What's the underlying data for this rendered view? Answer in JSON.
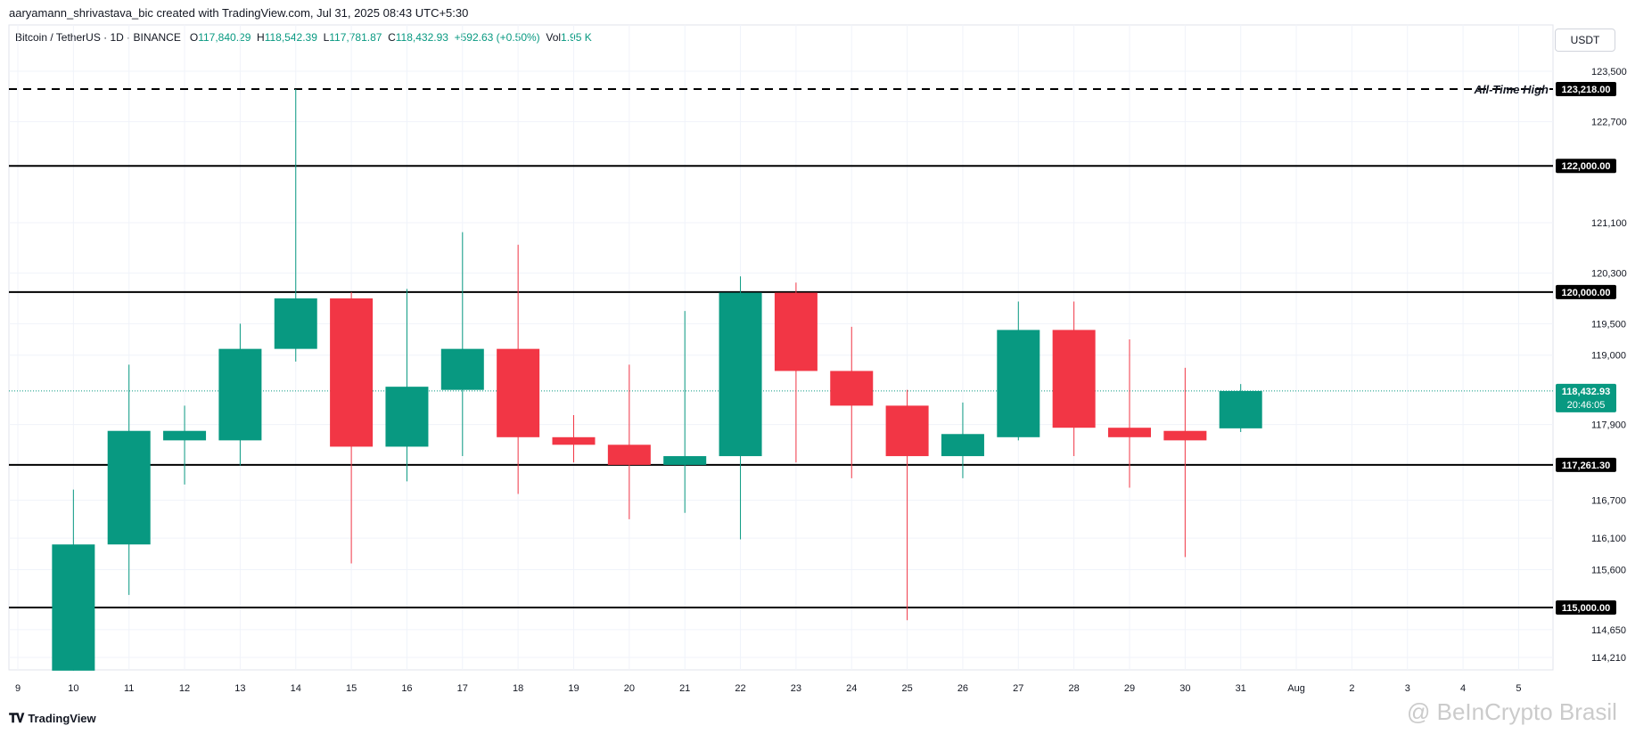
{
  "header": {
    "credit": "aaryamann_shrivastava_bic created with TradingView.com, Jul 31, 2025 08:43 UTC+5:30"
  },
  "symbol": {
    "name": "Bitcoin / TetherUS · 1D · BINANCE",
    "open_label": "O",
    "open": "117,840.29",
    "high_label": "H",
    "high": "118,542.39",
    "low_label": "L",
    "low": "117,781.87",
    "close_label": "C",
    "close": "118,432.93",
    "change": "+592.63 (+0.50%)",
    "vol_label": "Vol",
    "vol": "1.95 K"
  },
  "currency_button": "USDT",
  "footer": {
    "logo_text": "TradingView",
    "watermark": "@ BeInCrypto Brasil"
  },
  "colors": {
    "up": "#089981",
    "down": "#f23645",
    "grid": "#f0f3fa",
    "line": "#000000"
  },
  "chart_data": {
    "type": "candlestick",
    "ylim": [
      113900,
      124000
    ],
    "y_ticks": [
      {
        "value": 123500,
        "label": "123,500.00"
      },
      {
        "value": 122700,
        "label": "122,700.00"
      },
      {
        "value": 121100,
        "label": "121,100.00"
      },
      {
        "value": 120300,
        "label": "120,300.00"
      },
      {
        "value": 119500,
        "label": "119,500.00"
      },
      {
        "value": 119000,
        "label": "119,000.00"
      },
      {
        "value": 117900,
        "label": "117,900.00"
      },
      {
        "value": 116700,
        "label": "116,700.00"
      },
      {
        "value": 116100,
        "label": "116,100.00"
      },
      {
        "value": 115600,
        "label": "115,600.00"
      },
      {
        "value": 114650,
        "label": "114,650.00"
      },
      {
        "value": 114210,
        "label": "114,210.00"
      }
    ],
    "x_ticks": [
      "9",
      "10",
      "11",
      "12",
      "13",
      "14",
      "15",
      "16",
      "17",
      "18",
      "19",
      "20",
      "21",
      "22",
      "23",
      "24",
      "25",
      "26",
      "27",
      "28",
      "29",
      "30",
      "31",
      "Aug",
      "2",
      "3",
      "4",
      "5"
    ],
    "candles": [
      {
        "day": "10",
        "o": 114000,
        "h": 116870,
        "l": 114000,
        "c": 116000
      },
      {
        "day": "11",
        "o": 116000,
        "h": 118850,
        "l": 115200,
        "c": 117800
      },
      {
        "day": "12",
        "o": 117650,
        "h": 118200,
        "l": 116950,
        "c": 117800
      },
      {
        "day": "13",
        "o": 117650,
        "h": 119500,
        "l": 117250,
        "c": 119100
      },
      {
        "day": "14",
        "o": 119100,
        "h": 123218,
        "l": 118900,
        "c": 119900
      },
      {
        "day": "15",
        "o": 119900,
        "h": 120000,
        "l": 115700,
        "c": 117550
      },
      {
        "day": "16",
        "o": 117550,
        "h": 120050,
        "l": 117000,
        "c": 118500
      },
      {
        "day": "17",
        "o": 118450,
        "h": 120950,
        "l": 117400,
        "c": 119100
      },
      {
        "day": "18",
        "o": 119100,
        "h": 120750,
        "l": 116800,
        "c": 117700
      },
      {
        "day": "19",
        "o": 117700,
        "h": 118050,
        "l": 117300,
        "c": 117580
      },
      {
        "day": "20",
        "o": 117580,
        "h": 118850,
        "l": 116400,
        "c": 117261
      },
      {
        "day": "21",
        "o": 117261,
        "h": 119700,
        "l": 116500,
        "c": 117400
      },
      {
        "day": "22",
        "o": 117400,
        "h": 120250,
        "l": 116080,
        "c": 119990
      },
      {
        "day": "23",
        "o": 119990,
        "h": 120150,
        "l": 117300,
        "c": 118750
      },
      {
        "day": "24",
        "o": 118750,
        "h": 119450,
        "l": 117050,
        "c": 118200
      },
      {
        "day": "25",
        "o": 118200,
        "h": 118450,
        "l": 114800,
        "c": 117400
      },
      {
        "day": "26",
        "o": 117400,
        "h": 118250,
        "l": 117050,
        "c": 117750
      },
      {
        "day": "27",
        "o": 117700,
        "h": 119850,
        "l": 117650,
        "c": 119400
      },
      {
        "day": "28",
        "o": 119400,
        "h": 119850,
        "l": 117400,
        "c": 117850
      },
      {
        "day": "29",
        "o": 117850,
        "h": 119250,
        "l": 116900,
        "c": 117700
      },
      {
        "day": "30",
        "o": 117800,
        "h": 118800,
        "l": 115800,
        "c": 117650
      },
      {
        "day": "31",
        "o": 117840.29,
        "h": 118542.39,
        "l": 117781.87,
        "c": 118432.93
      }
    ],
    "horizontal_lines": [
      {
        "value": 123218,
        "label": "123,218.00",
        "style": "dashed",
        "annotation": "All-Time High"
      },
      {
        "value": 122000,
        "label": "122,000.00",
        "style": "solid"
      },
      {
        "value": 120000,
        "label": "120,000.00",
        "style": "solid"
      },
      {
        "value": 117261.3,
        "label": "117,261.30",
        "style": "solid"
      },
      {
        "value": 115000,
        "label": "115,000.00",
        "style": "solid"
      }
    ],
    "last_price": {
      "value": 118432.93,
      "label": "118,432.93",
      "countdown": "20:46:05"
    },
    "grid": true
  }
}
